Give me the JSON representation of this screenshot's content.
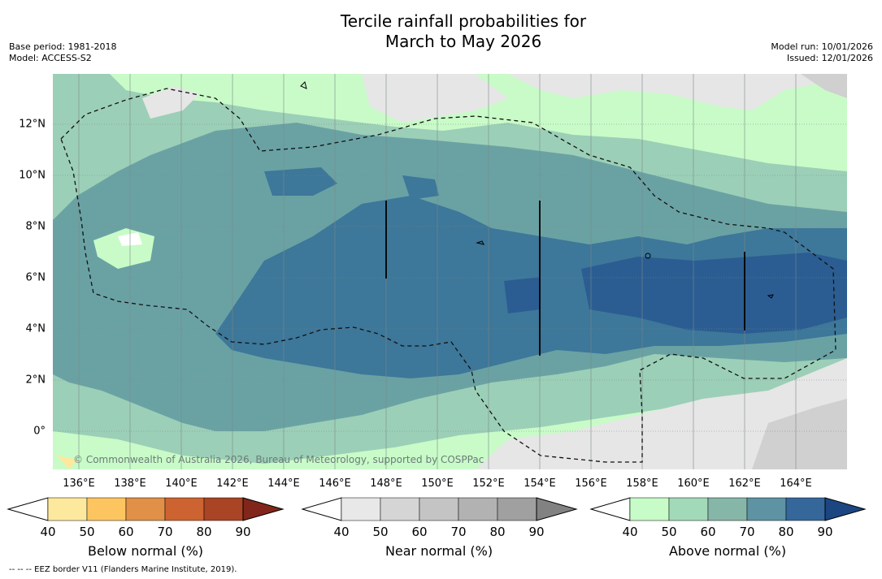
{
  "title": {
    "line1": "Tercile rainfall probabilities for",
    "line2": "March to May 2026"
  },
  "meta": {
    "base_period": "Base period: 1981-2018",
    "model": "Model: ACCESS-S2",
    "model_run": "Model run: 10/01/2026",
    "issued": "Issued: 12/01/2026"
  },
  "copyright": "© Commonwealth of Australia 2026, Bureau of Meteorology, supported by COSPPac",
  "footnote": "-- -- -- EEZ border V11 (Flanders Marine Institute, 2019).",
  "axes": {
    "x_ticks": [
      "136°E",
      "138°E",
      "140°E",
      "142°E",
      "144°E",
      "146°E",
      "148°E",
      "150°E",
      "152°E",
      "154°E",
      "156°E",
      "158°E",
      "160°E",
      "162°E",
      "164°E"
    ],
    "y_ticks": [
      "12°N",
      "10°N",
      "8°N",
      "6°N",
      "4°N",
      "2°N",
      "0°"
    ]
  },
  "colorbars": [
    {
      "title": "Below normal (%)",
      "labels": [
        "40",
        "50",
        "60",
        "70",
        "80",
        "90"
      ],
      "colors": [
        "#ffffff",
        "#fde99d",
        "#fdc560",
        "#e09147",
        "#cd6331",
        "#a94425",
        "#82261b"
      ]
    },
    {
      "title": "Near normal (%)",
      "labels": [
        "40",
        "50",
        "60",
        "70",
        "80",
        "90"
      ],
      "colors": [
        "#ffffff",
        "#e8e8e8",
        "#d5d5d5",
        "#c4c4c4",
        "#b2b2b2",
        "#a0a0a0",
        "#828282"
      ]
    },
    {
      "title": "Above normal (%)",
      "labels": [
        "40",
        "50",
        "60",
        "70",
        "80",
        "90"
      ],
      "colors": [
        "#ffffff",
        "#c7fbc8",
        "#a2dab9",
        "#86b6a8",
        "#5d93a3",
        "#35679a",
        "#1c4682"
      ]
    }
  ],
  "colors": {
    "above_50": "#c9fbc8",
    "above_60": "#9ccfb7",
    "above_70": "#6aa2a4",
    "above_80": "#3d7799",
    "above_90": "#2b5d92",
    "near_50": "#e6e6e6",
    "near_60": "#d0d0d0"
  }
}
